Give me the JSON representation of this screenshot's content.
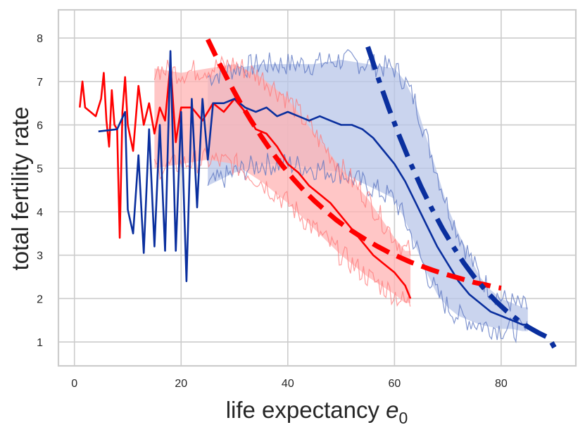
{
  "chart_data": {
    "type": "line",
    "title": "",
    "xlabel": "life expectancy",
    "xlabel_symbol": "e",
    "xlabel_subscript": "0",
    "ylabel": "total fertility rate",
    "xlim": [
      -3,
      94
    ],
    "ylim": [
      0.45,
      8.65
    ],
    "xticks": [
      0,
      20,
      40,
      60,
      80
    ],
    "yticks": [
      1,
      2,
      3,
      4,
      5,
      6,
      7,
      8
    ],
    "grid": true,
    "legend": "none",
    "colors": {
      "red": "#ff0000",
      "blue": "#0a2f9e",
      "blue_band": "#b8c6e8",
      "red_band": "#ffb3b3",
      "grid": "#cccccc",
      "text": "#262626"
    },
    "series": [
      {
        "name": "red-mean",
        "color": "#ff0000",
        "style": "solid",
        "x": [
          1,
          1.5,
          2,
          3,
          4,
          5,
          5.5,
          6,
          6.5,
          7,
          7.5,
          8,
          8.5,
          9,
          9.5,
          10,
          11,
          12,
          13,
          14,
          15,
          16,
          17,
          18,
          19,
          20,
          22,
          24,
          26,
          28,
          30,
          32,
          34,
          36,
          38,
          40,
          42,
          44,
          46,
          48,
          50,
          52,
          54,
          56,
          58,
          60,
          62,
          63
        ],
        "y": [
          6.4,
          7.0,
          6.4,
          6.3,
          6.2,
          6.6,
          7.2,
          6.1,
          5.5,
          6.8,
          6.0,
          5.9,
          3.4,
          6.3,
          7.1,
          6.0,
          5.4,
          6.9,
          6.0,
          6.5,
          5.8,
          6.4,
          6.1,
          7.4,
          5.6,
          6.4,
          6.4,
          6.1,
          6.5,
          6.3,
          6.6,
          6.3,
          5.9,
          5.8,
          5.5,
          5.1,
          4.9,
          4.6,
          4.4,
          4.2,
          3.9,
          3.6,
          3.3,
          3.0,
          2.8,
          2.6,
          2.3,
          2.0
        ]
      },
      {
        "name": "blue-mean",
        "color": "#0a2f9e",
        "style": "solid",
        "x": [
          4.5,
          8,
          9.5,
          10,
          11,
          12,
          13,
          14,
          15,
          16,
          17,
          18,
          19,
          20,
          21,
          22,
          23,
          24,
          25,
          26,
          28,
          30,
          32,
          34,
          36,
          38,
          40,
          42,
          44,
          46,
          48,
          50,
          52,
          54,
          56,
          58,
          60,
          62,
          64,
          66,
          68,
          70,
          72,
          74,
          76,
          78,
          80,
          82,
          84,
          85
        ],
        "y": [
          5.85,
          5.9,
          6.3,
          4.05,
          3.5,
          5.3,
          3.05,
          5.9,
          3.2,
          6.0,
          3.1,
          7.7,
          3.1,
          6.3,
          2.4,
          6.6,
          4.1,
          6.6,
          5.2,
          6.5,
          6.5,
          6.6,
          6.4,
          6.3,
          6.4,
          6.2,
          6.3,
          6.2,
          6.1,
          6.2,
          6.1,
          6.0,
          6.0,
          5.9,
          5.7,
          5.4,
          5.1,
          4.7,
          4.2,
          3.7,
          3.2,
          2.8,
          2.4,
          2.1,
          1.9,
          1.7,
          1.6,
          1.5,
          1.4,
          1.4
        ]
      },
      {
        "name": "red-fit",
        "color": "#ff0000",
        "style": "dashed",
        "x": [
          25,
          27,
          29,
          31,
          33,
          35,
          37,
          39,
          41,
          43,
          45,
          47,
          49,
          51,
          53,
          55,
          57,
          59,
          61,
          63,
          65,
          67,
          69,
          71,
          73,
          75,
          77,
          79,
          80
        ],
        "y": [
          7.97,
          7.46,
          6.98,
          6.53,
          6.12,
          5.74,
          5.38,
          5.06,
          4.76,
          4.49,
          4.25,
          4.03,
          3.82,
          3.64,
          3.48,
          3.33,
          3.19,
          3.06,
          2.95,
          2.84,
          2.75,
          2.66,
          2.58,
          2.51,
          2.44,
          2.37,
          2.32,
          2.26,
          2.24
        ]
      },
      {
        "name": "blue-fit",
        "color": "#0a2f9e",
        "style": "dashed",
        "x": [
          55,
          57,
          59,
          61,
          63,
          65,
          67,
          69,
          71,
          73,
          75,
          77,
          79,
          81,
          83,
          85,
          87,
          89,
          90
        ],
        "y": [
          7.8,
          7.06,
          6.36,
          5.72,
          5.12,
          4.57,
          4.07,
          3.61,
          3.2,
          2.82,
          2.49,
          2.2,
          1.94,
          1.71,
          1.52,
          1.35,
          1.21,
          1.09,
          0.87
        ]
      }
    ],
    "bands": [
      {
        "name": "blue-band",
        "color": "#b8c6e8",
        "x": [
          25,
          30,
          35,
          40,
          45,
          50,
          55,
          60,
          62,
          64,
          66,
          68,
          70,
          72,
          74,
          76,
          78,
          80,
          82,
          84,
          85
        ],
        "low": [
          4.6,
          4.9,
          5.1,
          5.1,
          5.0,
          4.9,
          4.6,
          4.3,
          3.8,
          3.2,
          2.6,
          2.1,
          1.8,
          1.6,
          1.5,
          1.4,
          1.35,
          1.3,
          1.3,
          1.25,
          1.25
        ],
        "high": [
          7.1,
          7.3,
          7.4,
          7.4,
          7.4,
          7.5,
          7.4,
          7.3,
          7.0,
          6.5,
          5.7,
          4.9,
          4.1,
          3.5,
          3.0,
          2.5,
          2.2,
          2.0,
          1.9,
          1.8,
          1.8
        ]
      },
      {
        "name": "red-band",
        "color": "#ffb3b3",
        "x": [
          15,
          20,
          25,
          30,
          35,
          40,
          45,
          50,
          55,
          60,
          62,
          63
        ],
        "low": [
          5.0,
          5.1,
          5.2,
          5.1,
          4.7,
          4.2,
          3.6,
          3.0,
          2.5,
          2.1,
          1.9,
          1.9
        ],
        "high": [
          7.3,
          7.2,
          7.3,
          7.4,
          7.1,
          6.6,
          5.8,
          5.0,
          4.3,
          3.4,
          3.1,
          3.1
        ]
      }
    ]
  }
}
